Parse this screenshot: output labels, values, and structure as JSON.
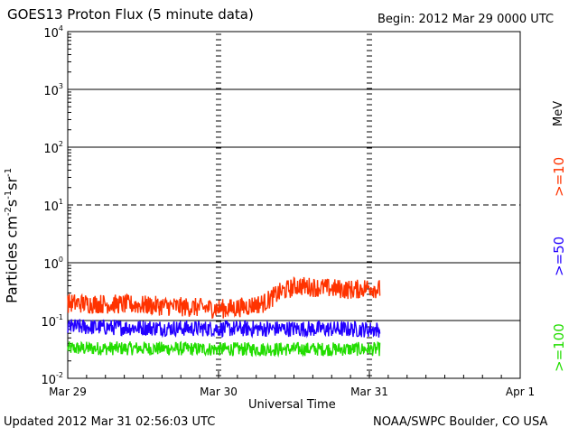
{
  "header": {
    "title": "GOES13 Proton Flux (5 minute data)",
    "begin": "Begin: 2012 Mar 29 0000 UTC"
  },
  "footer": {
    "updated": "Updated 2012 Mar 31 02:56:03 UTC",
    "credit": "NOAA/SWPC Boulder, CO USA"
  },
  "colors": {
    "ge10": "#ff3300",
    "ge50": "#2200ff",
    "ge100": "#22dd00",
    "grid": "#000000"
  },
  "chart_data": {
    "type": "line",
    "title": "GOES13 Proton Flux (5 minute data)",
    "xlabel": "Universal Time",
    "ylabel_parts": [
      "Particles cm",
      "-2",
      "s",
      "-1",
      "sr",
      "-1"
    ],
    "yscale": "log",
    "ylim": [
      0.01,
      10000
    ],
    "y_exponents": [
      -2,
      -1,
      0,
      1,
      2,
      3,
      4
    ],
    "y_tick_base": "10",
    "dashed_gridline_exponent": 1,
    "x_ticks": [
      "Mar 29",
      "Mar 30",
      "Mar 31",
      "Apr 1"
    ],
    "x_range_days": [
      0,
      3
    ],
    "data_end_day": 2.07,
    "legend_unit": "MeV",
    "series": [
      {
        "name": ">=10",
        "color_key": "ge10",
        "keyframes": [
          [
            0.0,
            0.2
          ],
          [
            0.4,
            0.19
          ],
          [
            0.8,
            0.17
          ],
          [
            1.05,
            0.16
          ],
          [
            1.15,
            0.17
          ],
          [
            1.3,
            0.2
          ],
          [
            1.4,
            0.3
          ],
          [
            1.52,
            0.4
          ],
          [
            1.62,
            0.38
          ],
          [
            1.75,
            0.36
          ],
          [
            1.9,
            0.34
          ],
          [
            2.0,
            0.38
          ],
          [
            2.07,
            0.34
          ]
        ],
        "noise_log_amp": 0.17
      },
      {
        "name": ">=50",
        "color_key": "ge50",
        "keyframes": [
          [
            0.0,
            0.078
          ],
          [
            0.5,
            0.075
          ],
          [
            1.0,
            0.072
          ],
          [
            1.5,
            0.072
          ],
          [
            2.07,
            0.07
          ]
        ],
        "noise_log_amp": 0.14
      },
      {
        "name": ">=100",
        "color_key": "ge100",
        "keyframes": [
          [
            0.0,
            0.033
          ],
          [
            0.5,
            0.033
          ],
          [
            1.0,
            0.032
          ],
          [
            1.5,
            0.032
          ],
          [
            2.07,
            0.032
          ]
        ],
        "noise_log_amp": 0.12
      }
    ]
  }
}
